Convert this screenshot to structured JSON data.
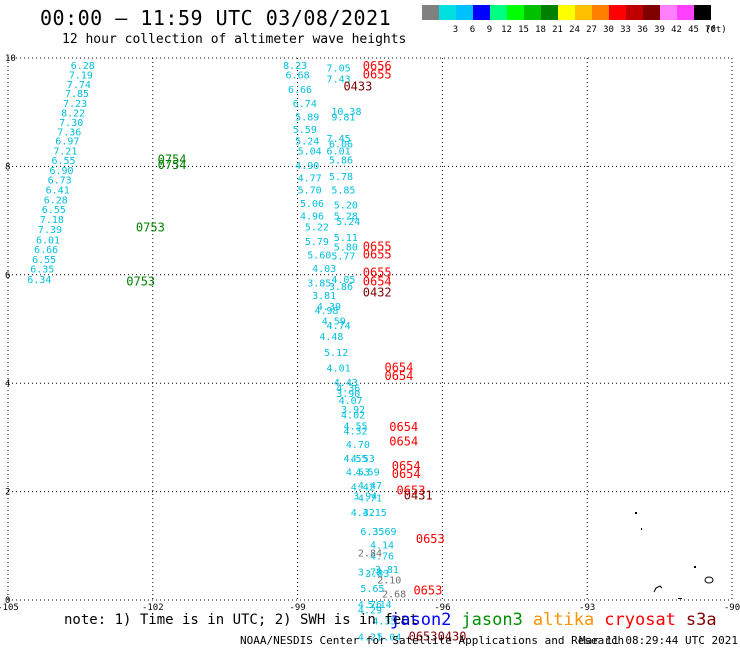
{
  "header": {
    "title": "00:00 — 11:59 UTC 03/08/2021",
    "subtitle": "12 hour collection of altimeter wave heights"
  },
  "color_scale": {
    "bins": [
      {
        "label": "",
        "color": "#808080"
      },
      {
        "label": "3",
        "color": "#00e0e0"
      },
      {
        "label": "6",
        "color": "#00c0ff"
      },
      {
        "label": "9",
        "color": "#0000ff"
      },
      {
        "label": "12",
        "color": "#00ff80"
      },
      {
        "label": "15",
        "color": "#00ff00"
      },
      {
        "label": "18",
        "color": "#00c000"
      },
      {
        "label": "21",
        "color": "#008000"
      },
      {
        "label": "24",
        "color": "#ffff00"
      },
      {
        "label": "27",
        "color": "#ffc000"
      },
      {
        "label": "30",
        "color": "#ff8000"
      },
      {
        "label": "33",
        "color": "#ff0000"
      },
      {
        "label": "36",
        "color": "#c00000"
      },
      {
        "label": "39",
        "color": "#800000"
      },
      {
        "label": "42",
        "color": "#ff80ff"
      },
      {
        "label": "45",
        "color": "#ff40ff"
      },
      {
        "label": "70",
        "color": "#000000"
      }
    ],
    "unit": "(ft)"
  },
  "chart_data": {
    "type": "scatter",
    "title": "00:00 — 11:59 UTC 03/08/2021",
    "subtitle": "12 hour collection of altimeter wave heights",
    "xlim": [
      -105,
      -90
    ],
    "ylim": [
      0,
      10
    ],
    "x_ticks": [
      "-105",
      "-102",
      "-99",
      "-96",
      "-93",
      "-90"
    ],
    "y_ticks": [
      "0",
      "2",
      "4",
      "6",
      "8",
      "10"
    ],
    "grid": true,
    "series": [
      {
        "name": "track_west",
        "color": "#00c0e0",
        "points": [
          {
            "lon": -103.7,
            "lat": 9.8,
            "label": "6.28"
          },
          {
            "lon": -103.74,
            "lat": 9.62,
            "label": "7.19"
          },
          {
            "lon": -103.78,
            "lat": 9.45,
            "label": "7.74"
          },
          {
            "lon": -103.82,
            "lat": 9.28,
            "label": "7.85"
          },
          {
            "lon": -103.86,
            "lat": 9.1,
            "label": "7.23"
          },
          {
            "lon": -103.9,
            "lat": 8.92,
            "label": "8.22"
          },
          {
            "lon": -103.94,
            "lat": 8.75,
            "label": "7.30"
          },
          {
            "lon": -103.98,
            "lat": 8.57,
            "label": "7.36"
          },
          {
            "lon": -104.02,
            "lat": 8.4,
            "label": "6.97"
          },
          {
            "lon": -104.06,
            "lat": 8.22,
            "label": "7.21"
          },
          {
            "lon": -104.1,
            "lat": 8.04,
            "label": "6.55"
          },
          {
            "lon": -104.14,
            "lat": 7.86,
            "label": "6.90"
          },
          {
            "lon": -104.18,
            "lat": 7.68,
            "label": "6.73"
          },
          {
            "lon": -104.22,
            "lat": 7.5,
            "label": "6.41"
          },
          {
            "lon": -104.26,
            "lat": 7.32,
            "label": "6.28"
          },
          {
            "lon": -104.3,
            "lat": 7.14,
            "label": "6.55"
          },
          {
            "lon": -104.34,
            "lat": 6.96,
            "label": "7.18"
          },
          {
            "lon": -104.38,
            "lat": 6.77,
            "label": "7.39"
          },
          {
            "lon": -104.42,
            "lat": 6.58,
            "label": "6.01"
          },
          {
            "lon": -104.46,
            "lat": 6.4,
            "label": "6.66"
          },
          {
            "lon": -104.5,
            "lat": 6.22,
            "label": "6.55"
          },
          {
            "lon": -104.54,
            "lat": 6.04,
            "label": "6.35"
          },
          {
            "lon": -104.6,
            "lat": 5.85,
            "label": "6.34"
          }
        ]
      },
      {
        "name": "track_central",
        "color": "#00c0e0",
        "points": [
          {
            "lon": -99.3,
            "lat": 9.8,
            "label": "8.23"
          },
          {
            "lon": -98.4,
            "lat": 9.75,
            "label": "7.05"
          },
          {
            "lon": -99.25,
            "lat": 9.62,
            "label": "6.68"
          },
          {
            "lon": -98.4,
            "lat": 9.55,
            "label": "7.43"
          },
          {
            "lon": -99.2,
            "lat": 9.35,
            "label": "6.66"
          },
          {
            "lon": -99.1,
            "lat": 9.1,
            "label": "6.74"
          },
          {
            "lon": -98.3,
            "lat": 8.95,
            "label": "10.38"
          },
          {
            "lon": -99.05,
            "lat": 8.85,
            "label": "5.89"
          },
          {
            "lon": -98.3,
            "lat": 8.85,
            "label": "9.81"
          },
          {
            "lon": -99.1,
            "lat": 8.62,
            "label": "5.59"
          },
          {
            "lon": -98.4,
            "lat": 8.45,
            "label": "7.45"
          },
          {
            "lon": -99.05,
            "lat": 8.4,
            "label": "5.24"
          },
          {
            "lon": -98.35,
            "lat": 8.35,
            "label": "6.06"
          },
          {
            "lon": -98.4,
            "lat": 8.22,
            "label": "6.01"
          },
          {
            "lon": -99.0,
            "lat": 8.22,
            "label": "5.04"
          },
          {
            "lon": -98.35,
            "lat": 8.05,
            "label": "5.86"
          },
          {
            "lon": -99.05,
            "lat": 7.95,
            "label": "4.90"
          },
          {
            "lon": -98.35,
            "lat": 7.75,
            "label": "5.78"
          },
          {
            "lon": -99.0,
            "lat": 7.72,
            "label": "4.77"
          },
          {
            "lon": -99.0,
            "lat": 7.5,
            "label": "5.70"
          },
          {
            "lon": -98.3,
            "lat": 7.5,
            "label": "5.85"
          },
          {
            "lon": -98.95,
            "lat": 7.25,
            "label": "5.06"
          },
          {
            "lon": -98.25,
            "lat": 7.22,
            "label": "5.20"
          },
          {
            "lon": -98.95,
            "lat": 7.02,
            "label": "4.96"
          },
          {
            "lon": -98.25,
            "lat": 7.02,
            "label": "5.28"
          },
          {
            "lon": -98.2,
            "lat": 6.92,
            "label": "5.24"
          },
          {
            "lon": -98.85,
            "lat": 6.82,
            "label": "5.22"
          },
          {
            "lon": -98.25,
            "lat": 6.62,
            "label": "5.11"
          },
          {
            "lon": -98.85,
            "lat": 6.55,
            "label": "5.79"
          },
          {
            "lon": -98.25,
            "lat": 6.45,
            "label": "5.80"
          },
          {
            "lon": -98.8,
            "lat": 6.3,
            "label": "5.60"
          },
          {
            "lon": -98.3,
            "lat": 6.28,
            "label": "5.77"
          },
          {
            "lon": -98.7,
            "lat": 6.05,
            "label": "4.03"
          },
          {
            "lon": -98.3,
            "lat": 5.85,
            "label": "4.05"
          },
          {
            "lon": -98.8,
            "lat": 5.78,
            "label": "3.85"
          },
          {
            "lon": -98.35,
            "lat": 5.72,
            "label": "3.86"
          },
          {
            "lon": -98.7,
            "lat": 5.55,
            "label": "3.81"
          },
          {
            "lon": -98.6,
            "lat": 5.35,
            "label": "4.39"
          },
          {
            "lon": -98.65,
            "lat": 5.28,
            "label": "4.98"
          },
          {
            "lon": -98.5,
            "lat": 5.08,
            "label": "4.59"
          },
          {
            "lon": -98.4,
            "lat": 5.0,
            "label": "4.74"
          },
          {
            "lon": -98.55,
            "lat": 4.8,
            "label": "4.48"
          },
          {
            "lon": -98.45,
            "lat": 4.5,
            "label": "5.12"
          },
          {
            "lon": -98.4,
            "lat": 4.22,
            "label": "4.01"
          },
          {
            "lon": -98.25,
            "lat": 3.95,
            "label": "4.43"
          },
          {
            "lon": -98.2,
            "lat": 3.85,
            "label": "4.36"
          },
          {
            "lon": -98.2,
            "lat": 3.75,
            "label": "3.90"
          },
          {
            "lon": -98.15,
            "lat": 3.62,
            "label": "4.07"
          },
          {
            "lon": -98.1,
            "lat": 3.45,
            "label": "3.92"
          },
          {
            "lon": -98.1,
            "lat": 3.35,
            "label": "4.02"
          },
          {
            "lon": -98.05,
            "lat": 3.15,
            "label": "4.55"
          },
          {
            "lon": -98.05,
            "lat": 3.05,
            "label": "4.32"
          },
          {
            "lon": -98.0,
            "lat": 2.8,
            "label": "4.70"
          },
          {
            "lon": -98.05,
            "lat": 2.55,
            "label": "4.55"
          },
          {
            "lon": -97.9,
            "lat": 2.55,
            "label": "4.53"
          },
          {
            "lon": -98.0,
            "lat": 2.3,
            "label": "4.53"
          },
          {
            "lon": -97.8,
            "lat": 2.3,
            "label": "4.59"
          },
          {
            "lon": -97.9,
            "lat": 2.02,
            "label": "4.42"
          },
          {
            "lon": -97.75,
            "lat": 2.05,
            "label": "4.47"
          },
          {
            "lon": -97.85,
            "lat": 1.85,
            "label": "3.94"
          },
          {
            "lon": -97.75,
            "lat": 1.82,
            "label": "4.71"
          },
          {
            "lon": -97.9,
            "lat": 1.55,
            "label": "4.32"
          },
          {
            "lon": -97.65,
            "lat": 1.55,
            "label": "4.15"
          },
          {
            "lon": -97.7,
            "lat": 1.2,
            "label": "6.35"
          },
          {
            "lon": -97.45,
            "lat": 1.2,
            "label": "3.69"
          },
          {
            "lon": -97.5,
            "lat": 0.95,
            "label": "4.14"
          },
          {
            "lon": -97.5,
            "lat": 0.75,
            "label": "4.76"
          },
          {
            "lon": -97.4,
            "lat": 0.5,
            "label": "3.81"
          },
          {
            "lon": -97.75,
            "lat": 0.45,
            "label": "3.78"
          },
          {
            "lon": -97.6,
            "lat": 0.42,
            "label": "3.83"
          },
          {
            "lon": -97.7,
            "lat": 0.15,
            "label": "5.65"
          },
          {
            "lon": -97.75,
            "lat": -0.15,
            "label": "4.76"
          },
          {
            "lon": -97.55,
            "lat": -0.15,
            "label": "5.14"
          },
          {
            "lon": -97.75,
            "lat": -0.25,
            "label": "4.29"
          },
          {
            "lon": -97.45,
            "lat": -0.45,
            "label": "4.35"
          },
          {
            "lon": -97.75,
            "lat": -0.75,
            "label": "4.21"
          },
          {
            "lon": -97.35,
            "lat": -0.75,
            "label": "5.04"
          }
        ]
      },
      {
        "name": "gray",
        "color": "#707070",
        "points": [
          {
            "lon": -97.75,
            "lat": 0.8,
            "label": "2.84"
          },
          {
            "lon": -97.35,
            "lat": 0.3,
            "label": "2.10"
          },
          {
            "lon": -97.25,
            "lat": 0.05,
            "label": "2.68"
          }
        ]
      },
      {
        "name": "jason3",
        "color": "#008000",
        "points": [
          {
            "lon": -101.9,
            "lat": 8.05,
            "label": "0754"
          },
          {
            "lon": -101.9,
            "lat": 7.95,
            "label": "0754"
          },
          {
            "lon": -102.35,
            "lat": 6.8,
            "label": "0753"
          },
          {
            "lon": -102.55,
            "lat": 5.8,
            "label": "0753"
          }
        ]
      },
      {
        "name": "cryosat_times",
        "color": "#ff0000",
        "points": [
          {
            "lon": -97.65,
            "lat": 9.78,
            "label": "0656"
          },
          {
            "lon": -97.65,
            "lat": 9.62,
            "label": "0655"
          },
          {
            "lon": -97.65,
            "lat": 6.45,
            "label": "0655"
          },
          {
            "lon": -97.65,
            "lat": 6.3,
            "label": "0655"
          },
          {
            "lon": -97.65,
            "lat": 5.97,
            "label": "0655"
          },
          {
            "lon": -97.65,
            "lat": 5.8,
            "label": "0654"
          },
          {
            "lon": -97.2,
            "lat": 4.22,
            "label": "0654"
          },
          {
            "lon": -97.2,
            "lat": 4.06,
            "label": "0654"
          },
          {
            "lon": -97.1,
            "lat": 3.12,
            "label": "0654"
          },
          {
            "lon": -97.1,
            "lat": 2.85,
            "label": "0654"
          },
          {
            "lon": -97.05,
            "lat": 2.4,
            "label": "0654"
          },
          {
            "lon": -97.05,
            "lat": 2.25,
            "label": "0654"
          },
          {
            "lon": -96.95,
            "lat": 1.95,
            "label": "0653"
          },
          {
            "lon": -96.55,
            "lat": 1.05,
            "label": "0653"
          },
          {
            "lon": -96.6,
            "lat": 0.1,
            "label": "0653"
          }
        ]
      },
      {
        "name": "dark_red_times",
        "color": "#800000",
        "points": [
          {
            "lon": -98.05,
            "lat": 9.4,
            "label": "0433"
          },
          {
            "lon": -97.65,
            "lat": 5.6,
            "label": "0432"
          },
          {
            "lon": -96.8,
            "lat": 1.85,
            "label": "0431"
          },
          {
            "lon": -96.1,
            "lat": -0.75,
            "label": "0430"
          },
          {
            "lon": -96.7,
            "lat": -0.75,
            "label": "0653"
          }
        ]
      }
    ]
  },
  "note": "note: 1) Time is in UTC; 2) SWH is in feet",
  "legend": [
    {
      "label": "jason2",
      "color": "#0000ff"
    },
    {
      "label": "jason3",
      "color": "#009000"
    },
    {
      "label": "altika",
      "color": "#ff9000"
    },
    {
      "label": "cryosat",
      "color": "#ff0000"
    },
    {
      "label": "s3a",
      "color": "#800000"
    }
  ],
  "credit": "NOAA/NESDIS Center for Satellite Applications and Research",
  "credit_time": "Mar 11 08:29:44 UTC 2021"
}
